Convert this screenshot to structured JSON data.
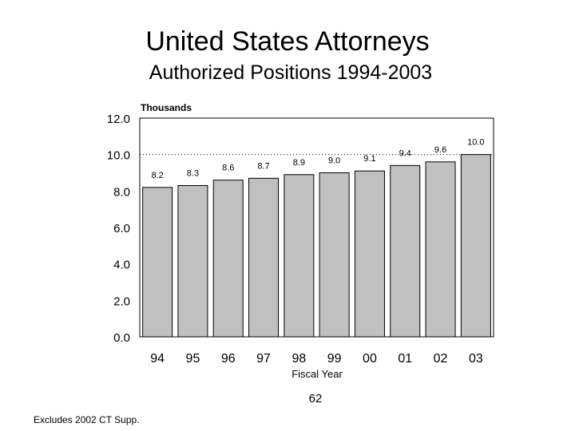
{
  "header": {
    "title": "United States Attorneys",
    "subtitle": "Authorized Positions 1994-2003"
  },
  "chart_data": {
    "type": "bar",
    "title": "United States Attorneys",
    "subtitle": "Authorized Positions 1994-2003",
    "units_label": "Thousands",
    "xlabel": "Fiscal Year",
    "ylabel": "",
    "categories": [
      "94",
      "95",
      "96",
      "97",
      "98",
      "99",
      "00",
      "01",
      "02",
      "03"
    ],
    "values": [
      8.2,
      8.3,
      8.6,
      8.7,
      8.9,
      9.0,
      9.1,
      9.4,
      9.6,
      10.0
    ],
    "value_labels": [
      "8.2",
      "8.3",
      "8.6",
      "8.7",
      "8.9",
      "9.0",
      "9.1",
      "9.4",
      "9.6",
      "10.0"
    ],
    "ylim": [
      0,
      12
    ],
    "yticks": [
      0,
      2,
      4,
      6,
      8,
      10,
      12
    ],
    "ytick_labels": [
      "0.0",
      "2.0",
      "4.0",
      "6.0",
      "8.0",
      "10.0",
      "12.0"
    ],
    "gridline_value": 10,
    "bar_color": "#c0c0c0",
    "grid": "dotted line at 10.0",
    "legend": "none"
  },
  "footer": {
    "page_number": "62",
    "footnote": "Excludes 2002 CT Supp."
  }
}
